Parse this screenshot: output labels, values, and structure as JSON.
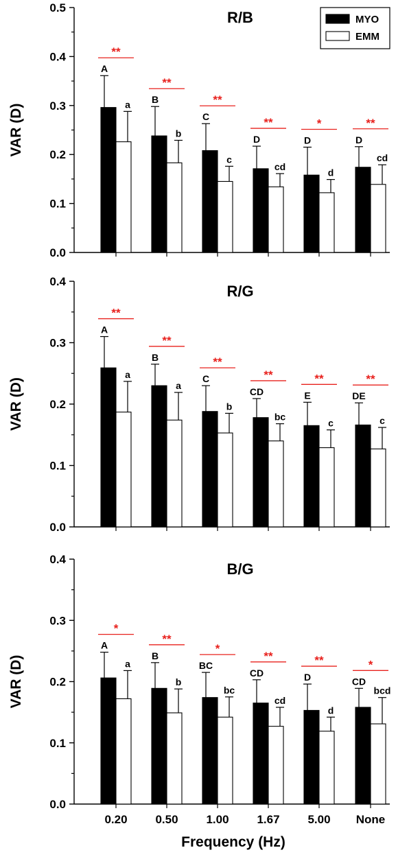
{
  "chart_data": {
    "type": "bar",
    "categories": [
      "0.20",
      "0.50",
      "1.00",
      "1.67",
      "5.00",
      "None"
    ],
    "xlabel": "Frequency (Hz)",
    "legend": {
      "placement": "top-right",
      "entries": [
        {
          "name": "MYO",
          "color": "#000000"
        },
        {
          "name": "EMM",
          "color": "#ffffff"
        }
      ]
    },
    "grid": false,
    "sig_color": "#e8201c",
    "panels": [
      {
        "title": "R/B",
        "ylabel": "VAR (D)",
        "ylim": [
          0,
          0.5
        ],
        "yticks": [
          "0.0",
          "0.1",
          "0.2",
          "0.3",
          "0.4",
          "0.5"
        ],
        "series": [
          {
            "name": "MYO",
            "values": [
              0.296,
              0.238,
              0.208,
              0.171,
              0.158,
              0.174
            ],
            "errors": [
              0.065,
              0.06,
              0.055,
              0.046,
              0.057,
              0.042
            ],
            "letters": [
              "A",
              "B",
              "C",
              "D",
              "D",
              "D"
            ]
          },
          {
            "name": "EMM",
            "values": [
              0.226,
              0.183,
              0.145,
              0.134,
              0.122,
              0.139
            ],
            "errors": [
              0.062,
              0.046,
              0.031,
              0.027,
              0.027,
              0.04
            ],
            "letters": [
              "a",
              "b",
              "c",
              "cd",
              "d",
              "cd"
            ]
          }
        ],
        "significance": [
          "**",
          "**",
          "**",
          "**",
          "*",
          "**"
        ]
      },
      {
        "title": "R/G",
        "ylabel": "VAR (D)",
        "ylim": [
          0,
          0.4
        ],
        "yticks": [
          "0.0",
          "0.1",
          "0.2",
          "0.3",
          "0.4"
        ],
        "series": [
          {
            "name": "MYO",
            "values": [
              0.259,
              0.23,
              0.188,
              0.178,
              0.165,
              0.166
            ],
            "errors": [
              0.051,
              0.035,
              0.042,
              0.031,
              0.038,
              0.036
            ],
            "letters": [
              "A",
              "B",
              "C",
              "CD",
              "E",
              "DE"
            ]
          },
          {
            "name": "EMM",
            "values": [
              0.187,
              0.174,
              0.153,
              0.14,
              0.129,
              0.127
            ],
            "errors": [
              0.05,
              0.045,
              0.032,
              0.028,
              0.029,
              0.035
            ],
            "letters": [
              "a",
              "a",
              "b",
              "bc",
              "c",
              "c"
            ]
          }
        ],
        "significance": [
          "**",
          "**",
          "**",
          "**",
          "**",
          "**"
        ]
      },
      {
        "title": "B/G",
        "ylabel": "VAR (D)",
        "ylim": [
          0,
          0.4
        ],
        "yticks": [
          "0.0",
          "0.1",
          "0.2",
          "0.3",
          "0.4"
        ],
        "series": [
          {
            "name": "MYO",
            "values": [
              0.206,
              0.189,
              0.174,
              0.165,
              0.153,
              0.158
            ],
            "errors": [
              0.042,
              0.042,
              0.041,
              0.038,
              0.043,
              0.031
            ],
            "letters": [
              "A",
              "B",
              "BC",
              "CD",
              "D",
              "CD"
            ]
          },
          {
            "name": "EMM",
            "values": [
              0.172,
              0.149,
              0.142,
              0.127,
              0.119,
              0.131
            ],
            "errors": [
              0.046,
              0.039,
              0.033,
              0.031,
              0.023,
              0.043
            ],
            "letters": [
              "a",
              "b",
              "bc",
              "cd",
              "d",
              "bcd"
            ]
          }
        ],
        "significance": [
          "*",
          "**",
          "*",
          "**",
          "**",
          "*"
        ]
      }
    ]
  }
}
